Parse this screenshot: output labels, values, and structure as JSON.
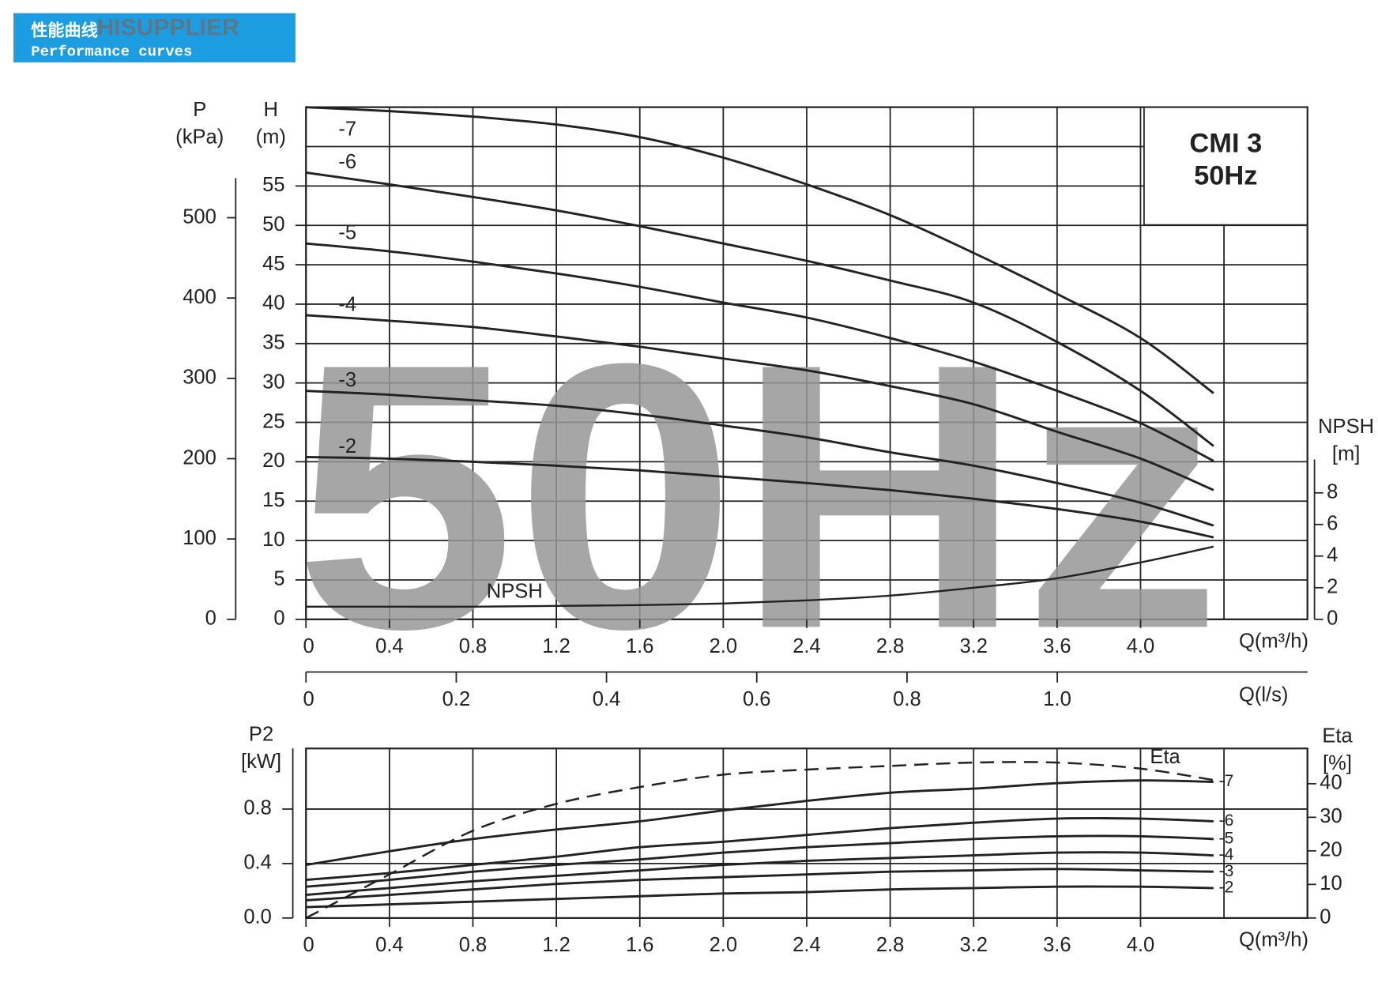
{
  "header": {
    "title": "性能曲线",
    "subtitle": "Performance curves",
    "watermark": "HISUPPLIER"
  },
  "chart_data": [
    {
      "type": "line",
      "title": "CMI 3",
      "subtitle": "50Hz",
      "watermark": "50Hz",
      "ylabel": [
        "H",
        "(m)"
      ],
      "y2label": [
        "P",
        "(kPa)"
      ],
      "y3label": [
        "NPSH",
        "[m]"
      ],
      "xlabel": "Q(m³/h)",
      "x2label": "Q(l/s)",
      "x": [
        0,
        0.4,
        0.8,
        1.2,
        1.6,
        2.0,
        2.4,
        2.8,
        3.2,
        3.6,
        4.0,
        4.35
      ],
      "xlim": [
        0,
        4.8
      ],
      "xticks": [
        0,
        0.4,
        0.8,
        1.2,
        1.6,
        {
          "value": 2,
          "label": "2.0"
        },
        2.4,
        2.8,
        3.2,
        3.6,
        {
          "value": 4,
          "label": "4.0"
        }
      ],
      "xgrid": [
        0,
        0.4,
        0.8,
        1.2,
        1.6,
        2.0,
        2.4,
        2.8,
        3.2,
        3.6,
        4.0,
        4.4,
        4.8
      ],
      "x2lim": [
        0,
        1.333
      ],
      "x2ticks": [
        0,
        0.2,
        0.4,
        0.6,
        0.8,
        {
          "value": 1,
          "label": "1.0"
        }
      ],
      "ylim": [
        0,
        65
      ],
      "yticks": [
        0,
        5,
        10,
        15,
        20,
        25,
        30,
        35,
        40,
        45,
        50,
        55
      ],
      "ygrid": [
        0,
        5,
        10,
        15,
        20,
        25,
        30,
        35,
        40,
        45,
        50,
        55,
        60,
        65
      ],
      "y2lim": [
        0,
        637.6
      ],
      "y2ticks": [
        0,
        100,
        200,
        300,
        400,
        500
      ],
      "y3lim": [
        0,
        32.4
      ],
      "y3ticks": [
        0,
        2,
        4,
        6,
        8
      ],
      "grid": true,
      "series": [
        {
          "name": "-7",
          "color": "#222222",
          "values": [
            65.0,
            64.5,
            63.8,
            62.8,
            61.2,
            58.6,
            55.2,
            51.3,
            46.5,
            41.3,
            35.7,
            28.7
          ]
        },
        {
          "name": "-6",
          "color": "#222222",
          "values": [
            56.7,
            55.2,
            53.6,
            51.9,
            49.9,
            47.7,
            45.5,
            43.0,
            40.2,
            35.2,
            29.0,
            22.0
          ]
        },
        {
          "name": "-5",
          "color": "#222222",
          "values": [
            47.7,
            46.7,
            45.4,
            43.9,
            42.2,
            40.2,
            38.3,
            35.7,
            32.7,
            29.0,
            24.9,
            20.1
          ]
        },
        {
          "name": "-4",
          "color": "#222222",
          "values": [
            38.6,
            37.9,
            37.1,
            35.9,
            34.6,
            33.1,
            31.6,
            29.6,
            27.3,
            23.8,
            20.4,
            16.4
          ]
        },
        {
          "name": "-3",
          "color": "#222222",
          "values": [
            29.0,
            28.5,
            27.8,
            27.1,
            26.0,
            24.6,
            23.1,
            21.2,
            19.5,
            17.3,
            14.8,
            11.9
          ]
        },
        {
          "name": "-2",
          "color": "#222222",
          "values": [
            20.6,
            20.4,
            20.0,
            19.5,
            18.9,
            18.1,
            17.3,
            16.4,
            15.3,
            14.0,
            12.4,
            10.4
          ]
        },
        {
          "name": "NPSH",
          "color": "#222222",
          "axis": "y3",
          "values": [
            0.8,
            0.8,
            0.8,
            0.85,
            0.9,
            1.0,
            1.2,
            1.5,
            2.0,
            2.6,
            3.6,
            4.6
          ]
        }
      ]
    },
    {
      "type": "line",
      "ylabel": [
        "P2",
        "[kW]"
      ],
      "y2label": [
        "Eta",
        "[%]"
      ],
      "xlabel": "Q(m³/h)",
      "x": [
        0,
        0.4,
        0.8,
        1.2,
        1.6,
        2.0,
        2.4,
        2.8,
        3.2,
        3.6,
        4.0,
        4.35
      ],
      "xlim": [
        0,
        4.8
      ],
      "xticks": [
        0,
        0.4,
        0.8,
        1.2,
        1.6,
        {
          "value": 2,
          "label": "2.0"
        },
        2.4,
        2.8,
        3.2,
        3.6,
        {
          "value": 4,
          "label": "4.0"
        }
      ],
      "xgrid": [
        0,
        0.4,
        0.8,
        1.2,
        1.6,
        2.0,
        2.4,
        2.8,
        3.2,
        3.6,
        4.0,
        4.4,
        4.8
      ],
      "ylim": [
        0,
        1.245
      ],
      "yticks": [
        {
          "value": 0,
          "label": "0.0"
        },
        0.4,
        0.8
      ],
      "y2lim": [
        0,
        50.5
      ],
      "y2ticks": [
        0,
        10,
        20,
        30,
        40
      ],
      "grid": true,
      "series": [
        {
          "name": "-7",
          "color": "#222222",
          "values": [
            0.39,
            0.49,
            0.58,
            0.65,
            0.71,
            0.79,
            0.86,
            0.92,
            0.95,
            0.99,
            1.01,
            1.0
          ]
        },
        {
          "name": "-6",
          "color": "#222222",
          "values": [
            0.28,
            0.33,
            0.39,
            0.45,
            0.52,
            0.56,
            0.61,
            0.66,
            0.7,
            0.73,
            0.73,
            0.71
          ]
        },
        {
          "name": "-5",
          "color": "#222222",
          "values": [
            0.23,
            0.28,
            0.34,
            0.39,
            0.43,
            0.48,
            0.52,
            0.55,
            0.58,
            0.6,
            0.6,
            0.58
          ]
        },
        {
          "name": "-4",
          "color": "#222222",
          "values": [
            0.17,
            0.22,
            0.27,
            0.31,
            0.35,
            0.39,
            0.42,
            0.44,
            0.46,
            0.48,
            0.48,
            0.46
          ]
        },
        {
          "name": "-3",
          "color": "#222222",
          "values": [
            0.13,
            0.17,
            0.21,
            0.25,
            0.28,
            0.3,
            0.32,
            0.34,
            0.35,
            0.36,
            0.35,
            0.34
          ]
        },
        {
          "name": "-2",
          "color": "#222222",
          "values": [
            0.08,
            0.1,
            0.12,
            0.14,
            0.16,
            0.18,
            0.19,
            0.21,
            0.22,
            0.23,
            0.23,
            0.22
          ]
        },
        {
          "name": "Eta",
          "color": "#222222",
          "axis": "y2",
          "dash": true,
          "values": [
            0,
            13,
            26,
            34,
            39,
            42.7,
            44.2,
            45.3,
            46.3,
            46.3,
            44.5,
            41.1
          ]
        }
      ]
    }
  ]
}
